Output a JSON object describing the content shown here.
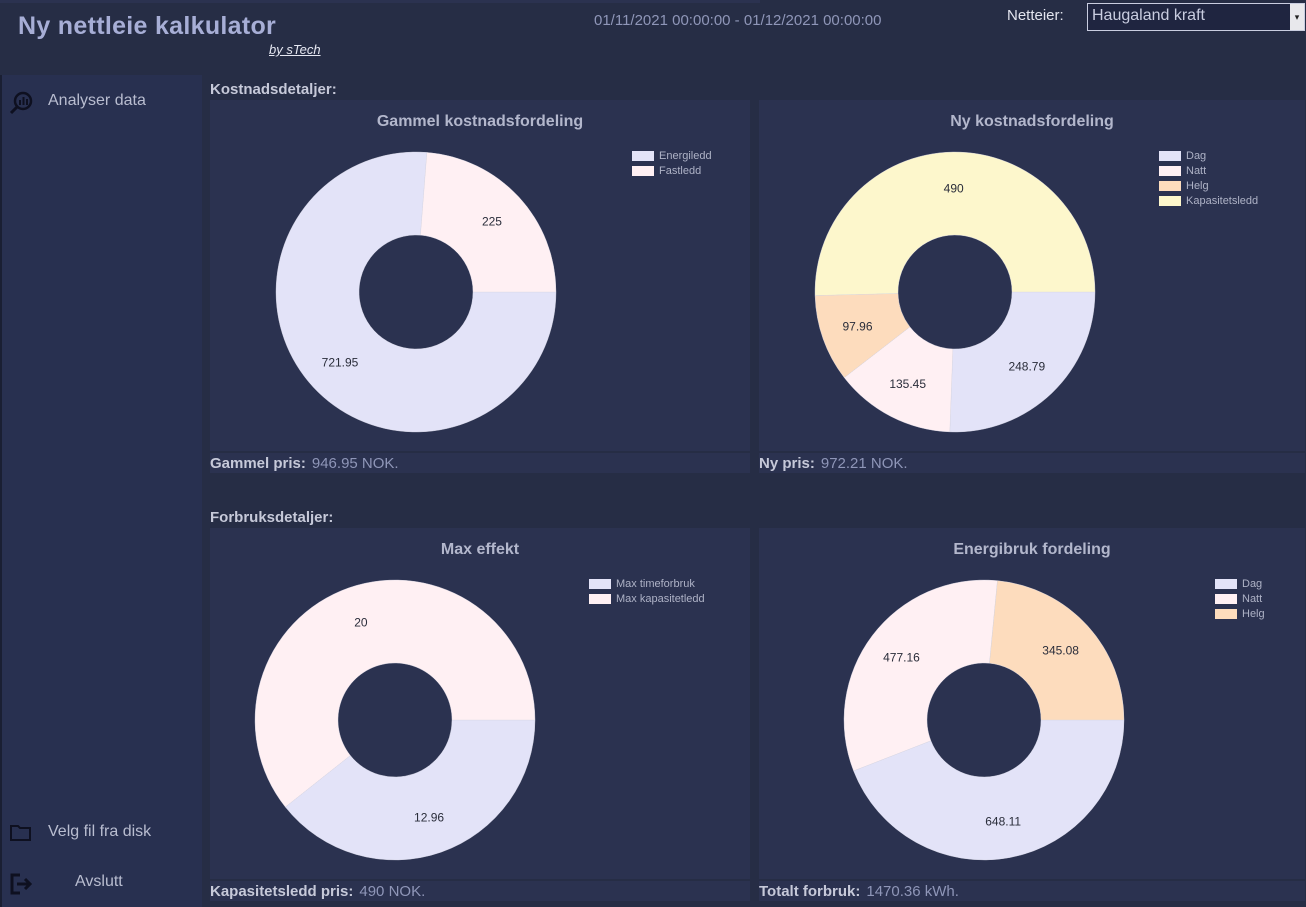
{
  "header": {
    "title": "Ny nettleie kalkulator",
    "by_line": "by sTech",
    "date_range": "01/11/2021 00:00:00 - 01/12/2021 00:00:00",
    "owner_label": "Netteier:",
    "owner_value": "Haugaland kraft"
  },
  "sidebar": {
    "analyse_label": "Analyser data",
    "file_label": "Velg fil fra disk",
    "exit_label": "Avslutt"
  },
  "sections": {
    "cost": "Kostnadsdetaljer:",
    "usage": "Forbruksdetaljer:"
  },
  "footers": {
    "old_price_label": "Gammel pris:",
    "old_price_value": "946.95 NOK.",
    "new_price_label": "Ny pris:",
    "new_price_value": "972.21 NOK.",
    "capacity_label": "Kapasitetsledd pris:",
    "capacity_value": "490 NOK.",
    "total_label": "Totalt forbruk:",
    "total_value": "1470.36 kWh."
  },
  "colors": {
    "lavender": "#e3e3f8",
    "pink": "#fff0f3",
    "peach": "#fddcbd",
    "cream": "#fdf7cc"
  },
  "chart_data": [
    {
      "type": "pie",
      "title": "Gammel kostnadsfordeling",
      "categories": [
        "Energiledd",
        "Fastledd"
      ],
      "values": [
        721.95,
        225
      ],
      "colors": [
        "#e3e3f8",
        "#fff0f3"
      ]
    },
    {
      "type": "pie",
      "title": "Ny kostnadsfordeling",
      "categories": [
        "Dag",
        "Natt",
        "Helg",
        "Kapasitetsledd"
      ],
      "values": [
        248.79,
        135.45,
        97.96,
        490
      ],
      "colors": [
        "#e3e3f8",
        "#fff0f3",
        "#fddcbd",
        "#fdf7cc"
      ]
    },
    {
      "type": "pie",
      "title": "Max effekt",
      "categories": [
        "Max timeforbruk",
        "Max kapasitetledd"
      ],
      "values": [
        12.96,
        20
      ],
      "colors": [
        "#e3e3f8",
        "#fff0f3"
      ]
    },
    {
      "type": "pie",
      "title": "Energibruk fordeling",
      "categories": [
        "Dag",
        "Natt",
        "Helg"
      ],
      "values": [
        648.11,
        477.16,
        345.08
      ],
      "colors": [
        "#e3e3f8",
        "#fff0f3",
        "#fddcbd"
      ]
    }
  ]
}
